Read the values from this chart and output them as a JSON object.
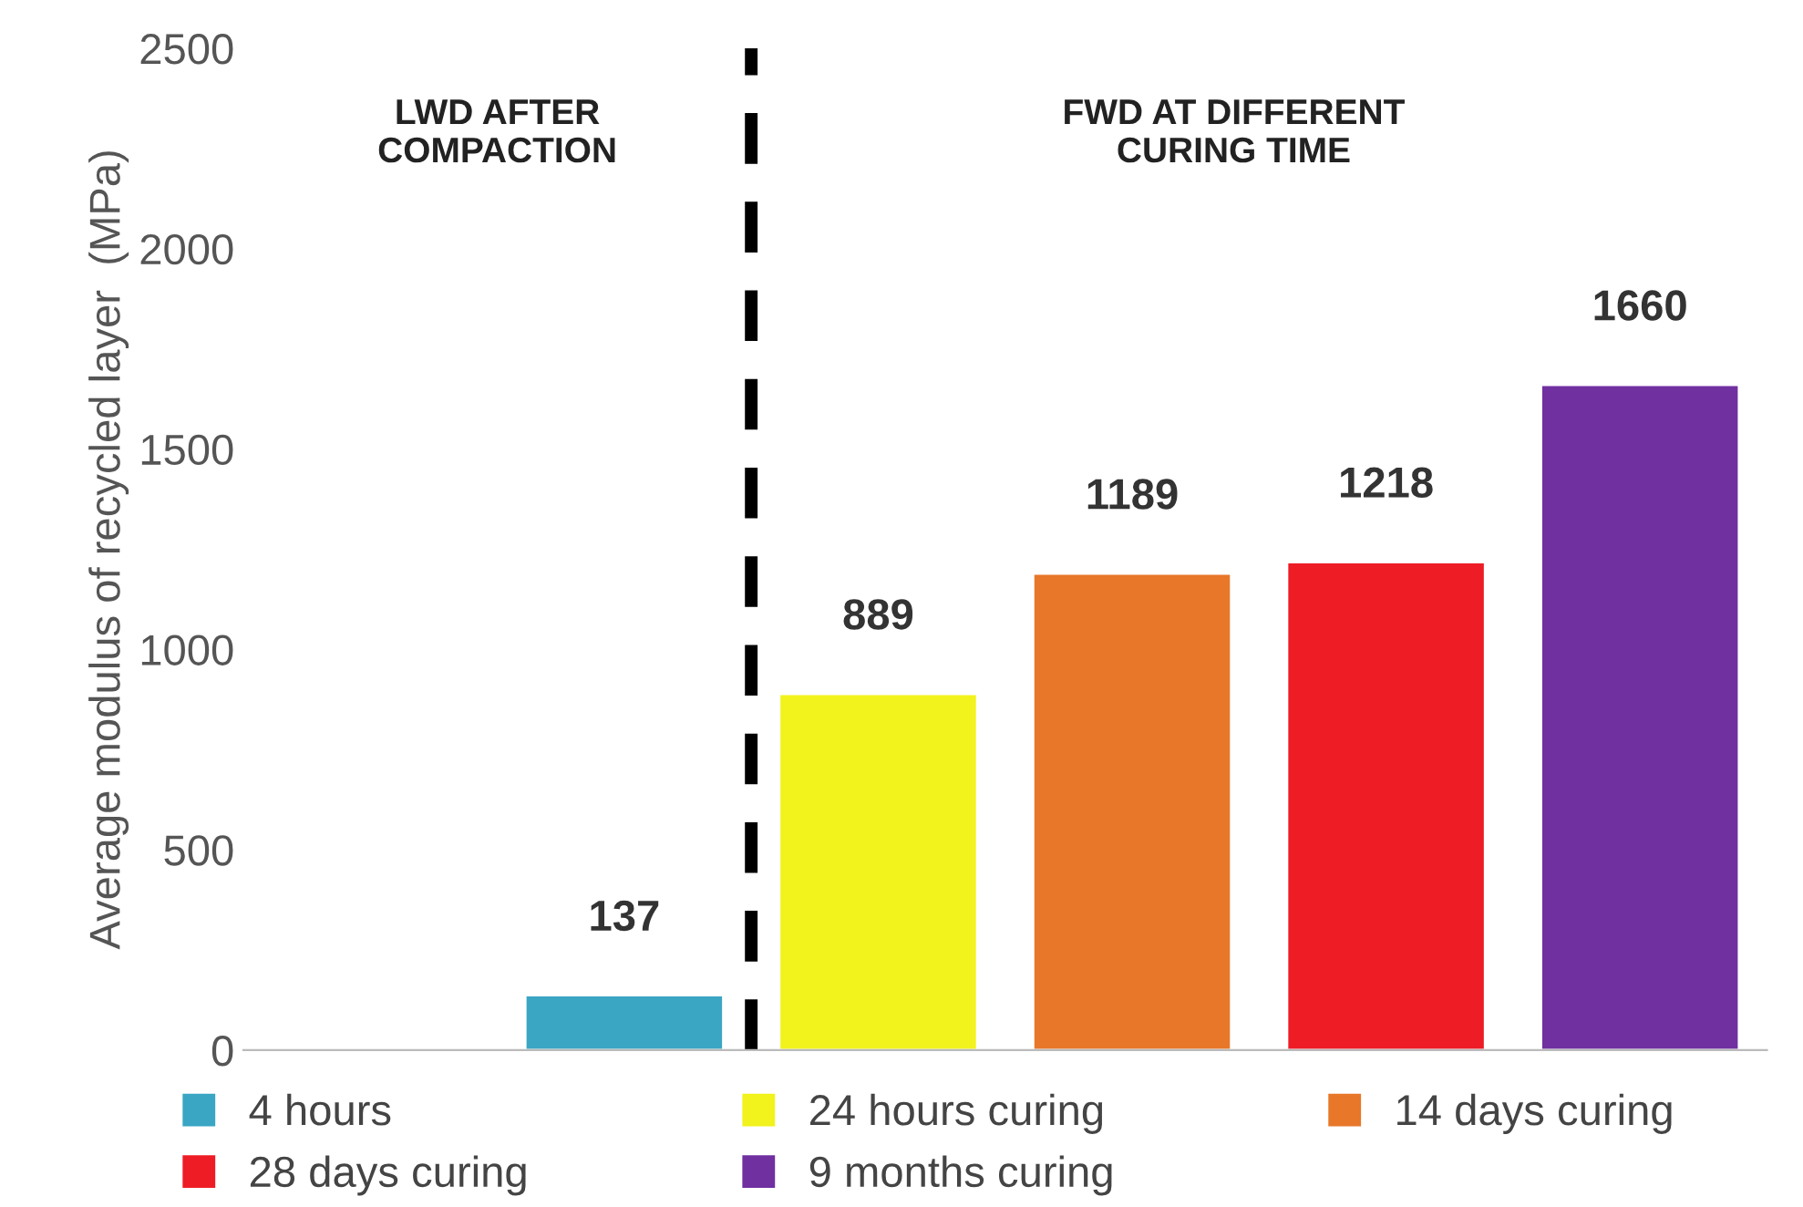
{
  "chart_data": {
    "type": "bar",
    "ylabel": "Average modulus of recycled layer  (MPa)",
    "categories": [
      null,
      null,
      null,
      null,
      null,
      null
    ],
    "series": [
      {
        "name": "4 hours",
        "color": "#3aa6c4",
        "values": [
          null,
          137,
          null,
          null,
          null,
          null
        ]
      },
      {
        "name": "24 hours curing",
        "color": "#f2f21c",
        "values": [
          null,
          null,
          889,
          null,
          null,
          null
        ]
      },
      {
        "name": "14 days curing",
        "color": "#e8772a",
        "values": [
          null,
          null,
          null,
          1189,
          null,
          null
        ]
      },
      {
        "name": "28 days curing",
        "color": "#ee1c25",
        "values": [
          null,
          null,
          null,
          null,
          1218,
          null
        ]
      },
      {
        "name": "9 months curing",
        "color": "#7030a0",
        "values": [
          null,
          null,
          null,
          null,
          null,
          1660
        ]
      }
    ],
    "ylim": [
      0,
      2500
    ],
    "yticks": [
      0,
      500,
      1000,
      1500,
      2000,
      2500
    ],
    "data_labels": true,
    "grid": false,
    "legend": "bottom",
    "annotations": [
      "LWD AFTER\nCOMPACTION",
      "FWD AT DIFFERENT\nCURING TIME"
    ]
  }
}
